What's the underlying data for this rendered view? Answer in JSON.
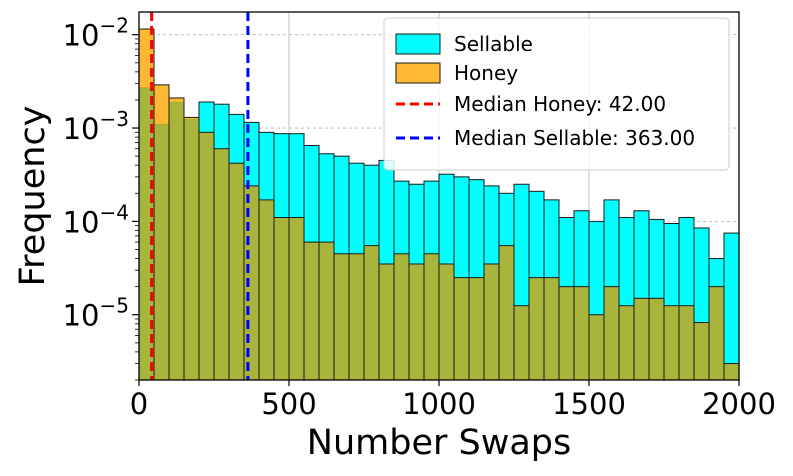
{
  "chart_data": {
    "type": "bar",
    "xlabel": "Number Swaps",
    "ylabel": "Frequency",
    "xlim": [
      0,
      2000
    ],
    "ylim": [
      2e-06,
      0.0175
    ],
    "yscale": "log",
    "bin_width": 50,
    "x_ticks": [
      {
        "value": 0,
        "label": "0"
      },
      {
        "value": 500,
        "label": "500"
      },
      {
        "value": 1000,
        "label": "1000"
      },
      {
        "value": 1500,
        "label": "1500"
      },
      {
        "value": 2000,
        "label": "2000"
      }
    ],
    "y_ticks": [
      {
        "value": 1e-05,
        "base": "10",
        "exp": "−5"
      },
      {
        "value": 0.0001,
        "base": "10",
        "exp": "−4"
      },
      {
        "value": 0.001,
        "base": "10",
        "exp": "−3"
      },
      {
        "value": 0.01,
        "base": "10",
        "exp": "−2"
      }
    ],
    "grid": true,
    "legend_position": "upper-right",
    "series": [
      {
        "name": "Sellable",
        "color": "#00ffff",
        "values": [
          0.0027,
          0.0011,
          0.0019,
          0.00125,
          0.0019,
          0.0018,
          0.0014,
          0.00115,
          0.0009,
          0.00087,
          0.00087,
          0.00065,
          0.00053,
          0.0005,
          0.00042,
          0.0004,
          0.00045,
          0.00027,
          0.00025,
          0.00027,
          0.00032,
          0.0003,
          0.00028,
          0.00024,
          0.0002,
          0.00025,
          0.00021,
          0.00017,
          0.00011,
          0.00013,
          0.0001,
          0.00017,
          0.00011,
          0.00013,
          0.000105,
          9.5e-05,
          0.00011,
          8.5e-05,
          4e-05,
          7.5e-05
        ]
      },
      {
        "name": "Honey",
        "color": "#ffb833",
        "values": [
          0.0115,
          0.0029,
          0.0021,
          0.0013,
          0.0009,
          0.0006,
          0.00042,
          0.00024,
          0.00017,
          0.00011,
          0.00011,
          6e-05,
          6e-05,
          4.5e-05,
          4.5e-05,
          5.5e-05,
          3.5e-05,
          4.5e-05,
          3.5e-05,
          4.5e-05,
          3.5e-05,
          2.5e-05,
          2.5e-05,
          3.5e-05,
          5.5e-05,
          1.25e-05,
          2.5e-05,
          2.5e-05,
          2e-05,
          2e-05,
          1e-05,
          2e-05,
          1.25e-05,
          1.5e-05,
          1.5e-05,
          1.25e-05,
          1.25e-05,
          8.25e-06,
          2e-05,
          3e-06
        ]
      }
    ],
    "median_lines": [
      {
        "name": "Median Honey: 42.00",
        "value": 42.0,
        "color": "#ff0000"
      },
      {
        "name": "Median Sellable: 363.00",
        "value": 363.0,
        "color": "#0000ff"
      }
    ],
    "overlap_color": "#a8b43c",
    "edge_color": "#1a1a1a"
  }
}
